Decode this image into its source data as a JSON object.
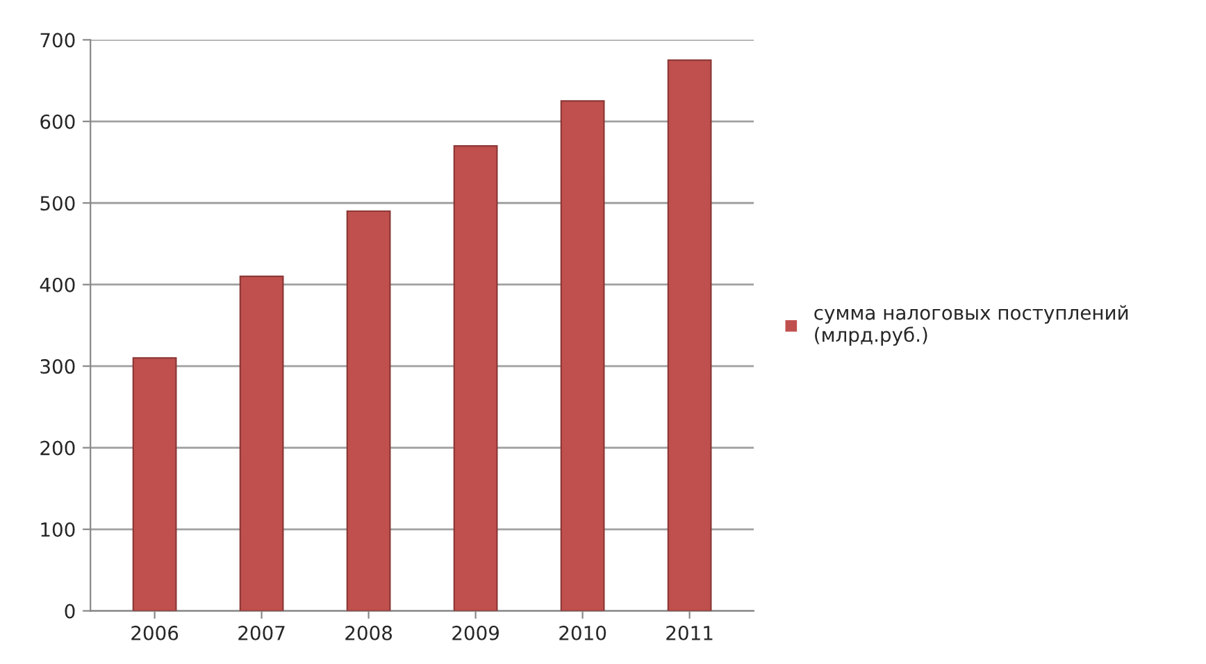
{
  "chart_data": {
    "type": "bar",
    "categories": [
      "2006",
      "2007",
      "2008",
      "2009",
      "2010",
      "2011"
    ],
    "series": [
      {
        "name": "сумма налоговых поступлений\n(млрд.руб.)",
        "color": "#c0504d",
        "values": [
          310,
          410,
          490,
          570,
          625,
          675
        ]
      }
    ],
    "ylim": [
      0,
      700
    ],
    "yticks": [
      0,
      100,
      200,
      300,
      400,
      500,
      600,
      700
    ],
    "grid": "y",
    "legend": "right"
  }
}
